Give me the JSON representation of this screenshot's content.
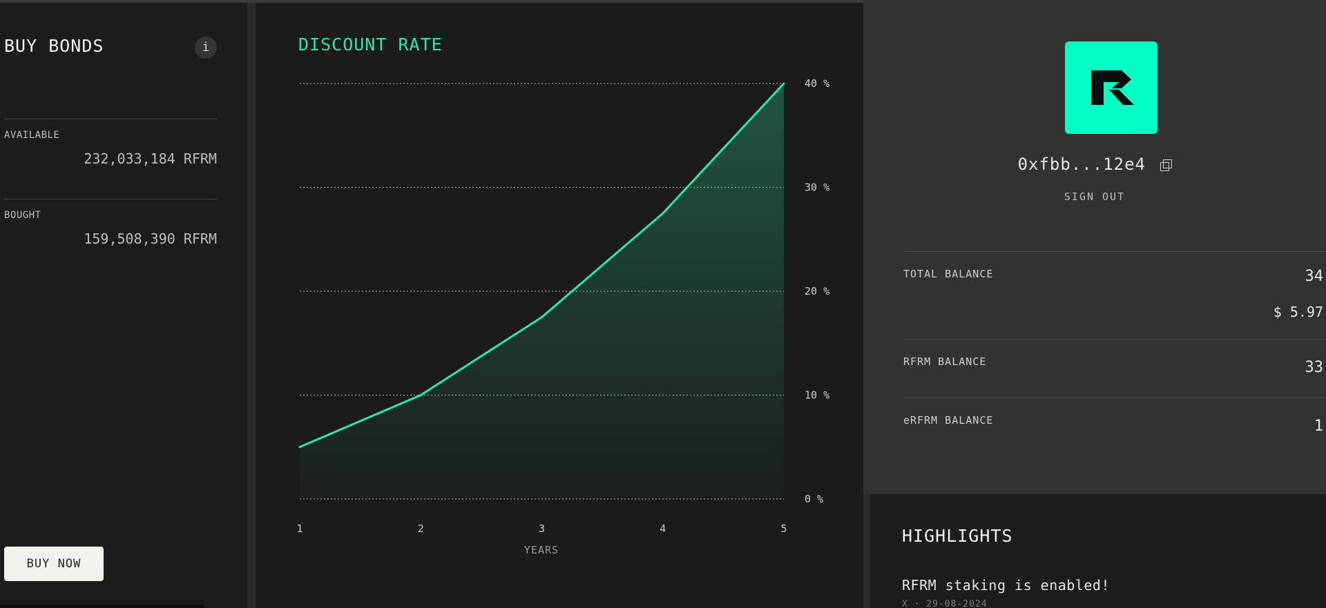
{
  "bonds": {
    "title": "BUY BONDS",
    "info_label": "i",
    "available_label": "AVAILABLE",
    "available_value": "232,033,184 RFRM",
    "bought_label": "BOUGHT",
    "bought_value": "159,508,390 RFRM",
    "buy_button": "BUY NOW"
  },
  "chart_title": "DISCOUNT RATE",
  "chart_data": {
    "type": "area",
    "title": "DISCOUNT RATE",
    "xlabel": "YEARS",
    "ylabel": "",
    "x": [
      1,
      2,
      3,
      4,
      5
    ],
    "series": [
      {
        "values": [
          5,
          10,
          17.5,
          27.5,
          40
        ]
      }
    ],
    "xticks": [
      "1",
      "2",
      "3",
      "4",
      "5"
    ],
    "yticks": [
      "0 %",
      "10 %",
      "20 %",
      "30 %",
      "40 %"
    ],
    "ylim": [
      0,
      40
    ],
    "grid": "horizontal-dotted",
    "line_color": "#2ee8a7"
  },
  "wallet": {
    "logo_letter": "R",
    "address": "0xfbb...12e4",
    "copy_icon": "copy-icon",
    "sign_out": "SIGN OUT",
    "total_label": "TOTAL BALANCE",
    "total_value": "34",
    "total_usd": "$ 5.97",
    "rfrm_label": "RFRM BALANCE",
    "rfrm_value": "33",
    "erfrm_label": "eRFRM BALANCE",
    "erfrm_value": "1"
  },
  "highlights": {
    "title": "HIGHLIGHTS",
    "item_title": "RFRM staking is enabled!",
    "item_meta": "X · 29-08-2024"
  },
  "colors": {
    "accent": "#2ee8a7",
    "logo_bg": "#03ffc4",
    "panel_dark": "#1c1c1c",
    "panel_mid": "#323232"
  }
}
